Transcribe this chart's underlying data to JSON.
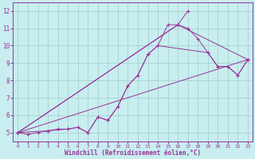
{
  "xlabel": "Windchill (Refroidissement éolien,°C)",
  "background_color": "#c8eef0",
  "grid_color": "#a0ccc8",
  "line_color": "#993399",
  "spine_color": "#993399",
  "xlim": [
    -0.5,
    23.5
  ],
  "ylim": [
    4.5,
    12.5
  ],
  "xticks": [
    0,
    1,
    2,
    3,
    4,
    5,
    6,
    7,
    8,
    9,
    10,
    11,
    12,
    13,
    14,
    15,
    16,
    17,
    18,
    19,
    20,
    21,
    22,
    23
  ],
  "yticks": [
    5,
    6,
    7,
    8,
    9,
    10,
    11,
    12
  ],
  "series": [
    {
      "x": [
        0,
        1,
        2,
        3,
        4,
        5,
        6,
        7,
        8,
        9,
        10,
        11,
        12,
        13,
        14,
        15,
        16,
        17,
        18,
        19,
        20,
        21,
        22,
        23
      ],
      "y": [
        5.0,
        4.9,
        5.0,
        5.1,
        5.2,
        5.2,
        5.3,
        5.0,
        5.9,
        5.7,
        6.5,
        7.7,
        8.3,
        9.5,
        10.0,
        11.2,
        11.2,
        11.0,
        10.4,
        9.6,
        8.8,
        8.8,
        8.3,
        9.2
      ]
    },
    {
      "x": [
        0,
        3,
        5,
        6,
        7,
        8,
        9,
        10,
        11,
        12,
        13,
        14,
        19,
        20,
        21,
        22,
        23
      ],
      "y": [
        5.0,
        5.1,
        5.2,
        5.3,
        5.0,
        5.9,
        5.7,
        6.5,
        7.7,
        8.3,
        9.5,
        10.0,
        9.6,
        8.8,
        8.8,
        8.3,
        9.2
      ]
    },
    {
      "x": [
        0,
        23
      ],
      "y": [
        5.0,
        9.2
      ]
    },
    {
      "x": [
        0,
        16,
        23
      ],
      "y": [
        5.0,
        11.2,
        9.2
      ]
    },
    {
      "x": [
        0,
        16,
        17
      ],
      "y": [
        5.0,
        11.2,
        12.0
      ]
    }
  ]
}
